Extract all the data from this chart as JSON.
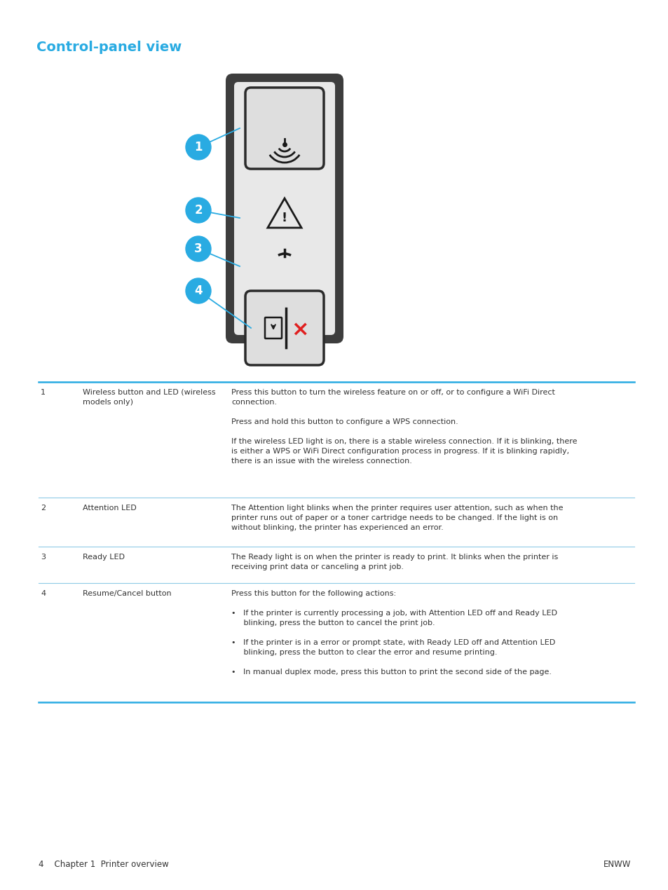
{
  "title": "Control-panel view",
  "title_color": "#29abe2",
  "bg_color": "#ffffff",
  "cyan_color": "#29abe2",
  "dark_gray": "#333333",
  "table_rows": [
    {
      "num": "1",
      "label": "Wireless button and LED (wireless\nmodels only)",
      "desc_lines": [
        "Press this button to turn the wireless feature on or off, or to configure a WiFi Direct",
        "connection.",
        "",
        "Press and hold this button to configure a WPS connection.",
        "",
        "If the wireless LED light is on, there is a stable wireless connection. If it is blinking, there",
        "is either a WPS or WiFi Direct configuration process in progress. If it is blinking rapidly,",
        "there is an issue with the wireless connection."
      ]
    },
    {
      "num": "2",
      "label": "Attention LED",
      "desc_lines": [
        "The Attention light blinks when the printer requires user attention, such as when the",
        "printer runs out of paper or a toner cartridge needs to be changed. If the light is on",
        "without blinking, the printer has experienced an error."
      ]
    },
    {
      "num": "3",
      "label": "Ready LED",
      "desc_lines": [
        "The Ready light is on when the printer is ready to print. It blinks when the printer is",
        "receiving print data or canceling a print job."
      ]
    },
    {
      "num": "4",
      "label": "Resume/Cancel button",
      "desc_lines": [
        "Press this button for the following actions:",
        "",
        "•   If the printer is currently processing a job, with Attention LED off and Ready LED",
        "     blinking, press the button to cancel the print job.",
        "",
        "•   If the printer is in a error or prompt state, with Ready LED off and Attention LED",
        "     blinking, press the button to clear the error and resume printing.",
        "",
        "•   In manual duplex mode, press this button to print the second side of the page."
      ]
    }
  ],
  "footer_left": "4    Chapter 1  Printer overview",
  "footer_right": "ENWW"
}
